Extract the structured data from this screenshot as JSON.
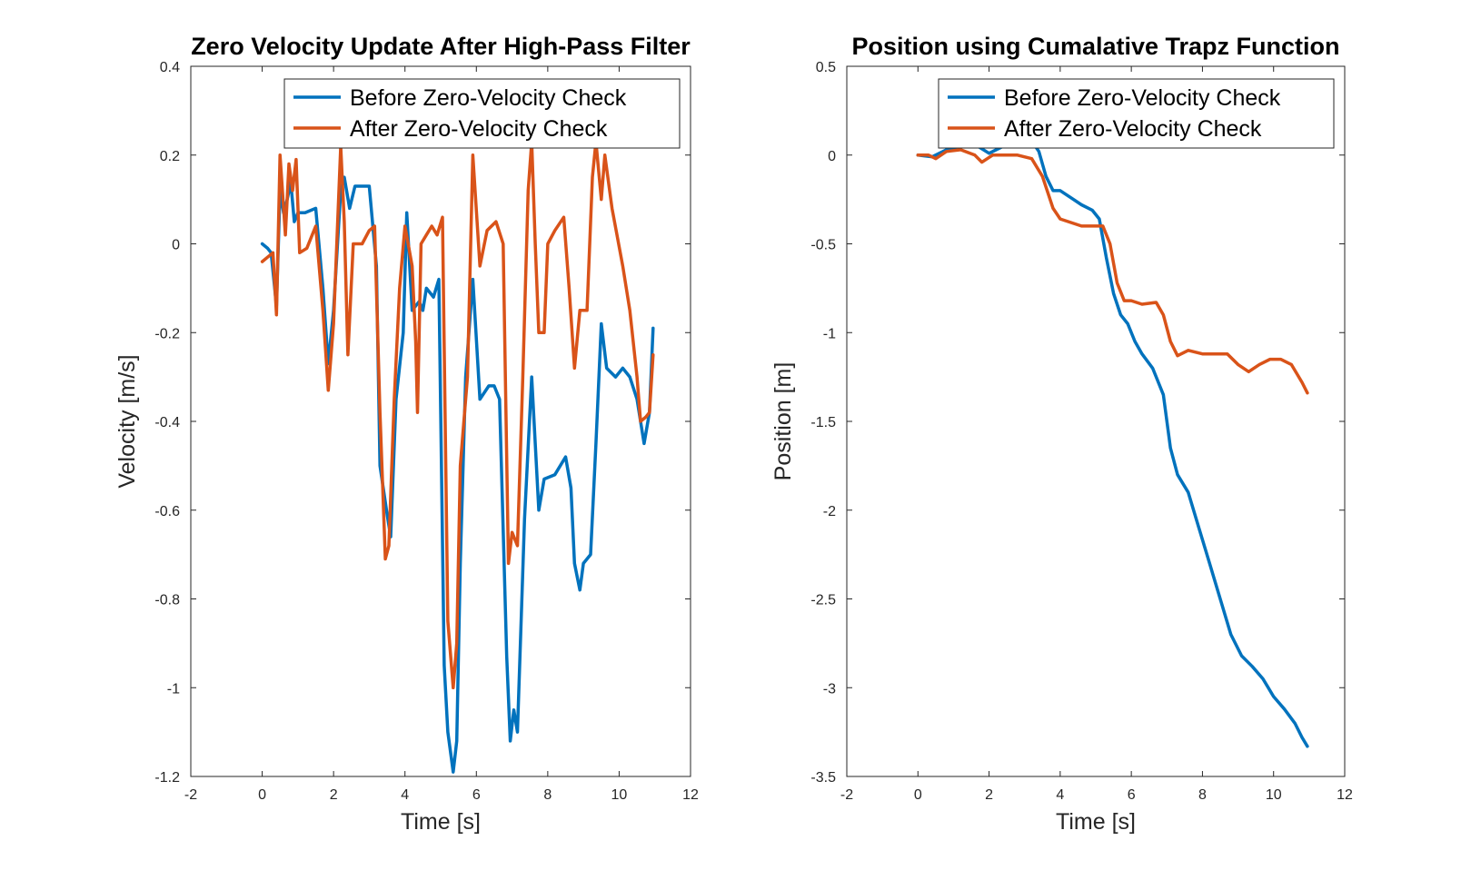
{
  "chart_data": [
    {
      "type": "line",
      "title": "Zero Velocity Update After High-Pass Filter",
      "xlabel": "Time [s]",
      "ylabel": "Velocity [m/s]",
      "xlim": [
        -2,
        12
      ],
      "ylim": [
        -1.2,
        0.4
      ],
      "xticks": [
        -2,
        0,
        2,
        4,
        6,
        8,
        10,
        12
      ],
      "yticks": [
        -1.2,
        -1,
        -0.8,
        -0.6,
        -0.4,
        -0.2,
        0,
        0.2,
        0.4
      ],
      "xtick_labels": [
        "-2",
        "0",
        "2",
        "4",
        "6",
        "8",
        "10",
        "12"
      ],
      "ytick_labels": [
        "-1.2",
        "-1",
        "-0.8",
        "-0.6",
        "-0.4",
        "-0.2",
        "0",
        "0.2",
        "0.4"
      ],
      "grid": false,
      "legend_position": "top-right",
      "series": [
        {
          "name": "Before Zero-Velocity Check",
          "color": "#0072BD",
          "x": [
            0,
            0.15,
            0.25,
            0.4,
            0.5,
            0.6,
            0.7,
            0.8,
            0.9,
            1.0,
            1.2,
            1.5,
            1.7,
            1.85,
            2.0,
            2.2,
            2.3,
            2.45,
            2.6,
            2.8,
            3.0,
            3.2,
            3.3,
            3.5,
            3.6,
            3.75,
            3.95,
            4.05,
            4.2,
            4.4,
            4.5,
            4.6,
            4.8,
            4.95,
            5.1,
            5.2,
            5.35,
            5.45,
            5.55,
            5.7,
            5.9,
            6.1,
            6.35,
            6.5,
            6.65,
            6.85,
            6.95,
            7.05,
            7.15,
            7.35,
            7.55,
            7.75,
            7.9,
            8.2,
            8.5,
            8.65,
            8.75,
            8.9,
            9.0,
            9.2,
            9.35,
            9.5,
            9.65,
            9.9,
            10.1,
            10.3,
            10.5,
            10.7,
            10.85,
            10.95
          ],
          "y": [
            0.0,
            -0.01,
            -0.02,
            -0.14,
            0.12,
            0.07,
            0.1,
            0.14,
            0.05,
            0.07,
            0.07,
            0.08,
            -0.1,
            -0.27,
            -0.15,
            0.12,
            0.15,
            0.08,
            0.13,
            0.13,
            0.13,
            -0.05,
            -0.5,
            -0.61,
            -0.66,
            -0.35,
            -0.2,
            0.07,
            -0.15,
            -0.13,
            -0.15,
            -0.1,
            -0.12,
            -0.08,
            -0.95,
            -1.1,
            -1.19,
            -1.12,
            -0.72,
            -0.3,
            -0.08,
            -0.35,
            -0.32,
            -0.32,
            -0.35,
            -0.93,
            -1.12,
            -1.05,
            -1.1,
            -0.62,
            -0.3,
            -0.6,
            -0.53,
            -0.52,
            -0.48,
            -0.55,
            -0.72,
            -0.78,
            -0.72,
            -0.7,
            -0.45,
            -0.18,
            -0.28,
            -0.3,
            -0.28,
            -0.3,
            -0.35,
            -0.45,
            -0.38,
            -0.19
          ]
        },
        {
          "name": "After Zero-Velocity Check",
          "color": "#D95319",
          "x": [
            0,
            0.15,
            0.3,
            0.4,
            0.5,
            0.65,
            0.75,
            0.85,
            0.95,
            1.05,
            1.25,
            1.5,
            1.7,
            1.85,
            2.0,
            2.2,
            2.3,
            2.4,
            2.55,
            2.8,
            3.0,
            3.15,
            3.3,
            3.45,
            3.55,
            3.7,
            3.85,
            4.0,
            4.2,
            4.3,
            4.35,
            4.45,
            4.6,
            4.75,
            4.9,
            5.05,
            5.2,
            5.35,
            5.45,
            5.55,
            5.75,
            5.9,
            6.1,
            6.3,
            6.55,
            6.75,
            6.9,
            7.0,
            7.15,
            7.3,
            7.45,
            7.55,
            7.65,
            7.75,
            7.9,
            8.0,
            8.2,
            8.45,
            8.6,
            8.75,
            8.9,
            9.1,
            9.25,
            9.35,
            9.5,
            9.6,
            9.8,
            10.1,
            10.3,
            10.5,
            10.6,
            10.75,
            10.85,
            10.95
          ],
          "y": [
            -0.04,
            -0.03,
            -0.02,
            -0.16,
            0.2,
            0.02,
            0.18,
            0.12,
            0.19,
            -0.02,
            -0.01,
            0.04,
            -0.15,
            -0.33,
            -0.18,
            0.22,
            0.05,
            -0.25,
            0.0,
            0.0,
            0.03,
            0.04,
            -0.38,
            -0.71,
            -0.68,
            -0.35,
            -0.1,
            0.04,
            -0.05,
            -0.22,
            -0.38,
            0.0,
            0.02,
            0.04,
            0.02,
            0.06,
            -0.85,
            -1.0,
            -0.9,
            -0.5,
            -0.3,
            0.2,
            -0.05,
            0.03,
            0.05,
            0.0,
            -0.72,
            -0.65,
            -0.68,
            -0.3,
            0.12,
            0.23,
            0.0,
            -0.2,
            -0.2,
            0.0,
            0.03,
            0.06,
            -0.1,
            -0.28,
            -0.15,
            -0.15,
            0.15,
            0.23,
            0.1,
            0.2,
            0.08,
            -0.05,
            -0.15,
            -0.3,
            -0.4,
            -0.39,
            -0.38,
            -0.25
          ]
        }
      ]
    },
    {
      "type": "line",
      "title": "Position using Cumalative Trapz Function",
      "xlabel": "Time [s]",
      "ylabel": "Position [m]",
      "xlim": [
        -2,
        12
      ],
      "ylim": [
        -3.5,
        0.5
      ],
      "xticks": [
        -2,
        0,
        2,
        4,
        6,
        8,
        10,
        12
      ],
      "yticks": [
        -3.5,
        -3,
        -2.5,
        -2,
        -1.5,
        -1,
        -0.5,
        0,
        0.5
      ],
      "xtick_labels": [
        "-2",
        "0",
        "2",
        "4",
        "6",
        "8",
        "10",
        "12"
      ],
      "ytick_labels": [
        "-3.5",
        "-3",
        "-2.5",
        "-2",
        "-1.5",
        "-1",
        "-0.5",
        "0",
        "0.5"
      ],
      "grid": false,
      "legend_position": "top-right",
      "series": [
        {
          "name": "Before Zero-Velocity Check",
          "color": "#0072BD",
          "x": [
            0,
            0.4,
            0.8,
            1.2,
            1.6,
            2.0,
            2.4,
            2.8,
            3.2,
            3.4,
            3.6,
            3.8,
            4.0,
            4.3,
            4.6,
            4.9,
            5.1,
            5.3,
            5.5,
            5.7,
            5.9,
            6.1,
            6.3,
            6.6,
            6.9,
            7.1,
            7.3,
            7.6,
            7.9,
            8.2,
            8.5,
            8.8,
            9.1,
            9.4,
            9.7,
            10.0,
            10.3,
            10.6,
            10.8,
            10.95
          ],
          "y": [
            0.0,
            -0.01,
            0.03,
            0.05,
            0.06,
            0.01,
            0.05,
            0.08,
            0.08,
            0.02,
            -0.12,
            -0.2,
            -0.2,
            -0.24,
            -0.28,
            -0.31,
            -0.36,
            -0.58,
            -0.78,
            -0.9,
            -0.95,
            -1.05,
            -1.12,
            -1.2,
            -1.35,
            -1.65,
            -1.8,
            -1.9,
            -2.1,
            -2.3,
            -2.5,
            -2.7,
            -2.82,
            -2.88,
            -2.95,
            -3.05,
            -3.12,
            -3.2,
            -3.28,
            -3.33
          ]
        },
        {
          "name": "After Zero-Velocity Check",
          "color": "#D95319",
          "x": [
            0,
            0.3,
            0.5,
            0.8,
            1.2,
            1.6,
            1.8,
            2.1,
            2.4,
            2.8,
            3.2,
            3.5,
            3.8,
            4.0,
            4.3,
            4.6,
            5.0,
            5.2,
            5.4,
            5.6,
            5.8,
            6.0,
            6.3,
            6.7,
            6.9,
            7.1,
            7.3,
            7.6,
            8.0,
            8.4,
            8.7,
            9.0,
            9.3,
            9.6,
            9.9,
            10.2,
            10.5,
            10.8,
            10.95
          ],
          "y": [
            0.0,
            0.0,
            -0.02,
            0.02,
            0.03,
            0.0,
            -0.04,
            0.0,
            0.0,
            0.0,
            -0.02,
            -0.12,
            -0.3,
            -0.36,
            -0.38,
            -0.4,
            -0.4,
            -0.4,
            -0.5,
            -0.72,
            -0.82,
            -0.82,
            -0.84,
            -0.83,
            -0.9,
            -1.05,
            -1.13,
            -1.1,
            -1.12,
            -1.12,
            -1.12,
            -1.18,
            -1.22,
            -1.18,
            -1.15,
            -1.15,
            -1.18,
            -1.28,
            -1.34
          ]
        }
      ]
    }
  ]
}
